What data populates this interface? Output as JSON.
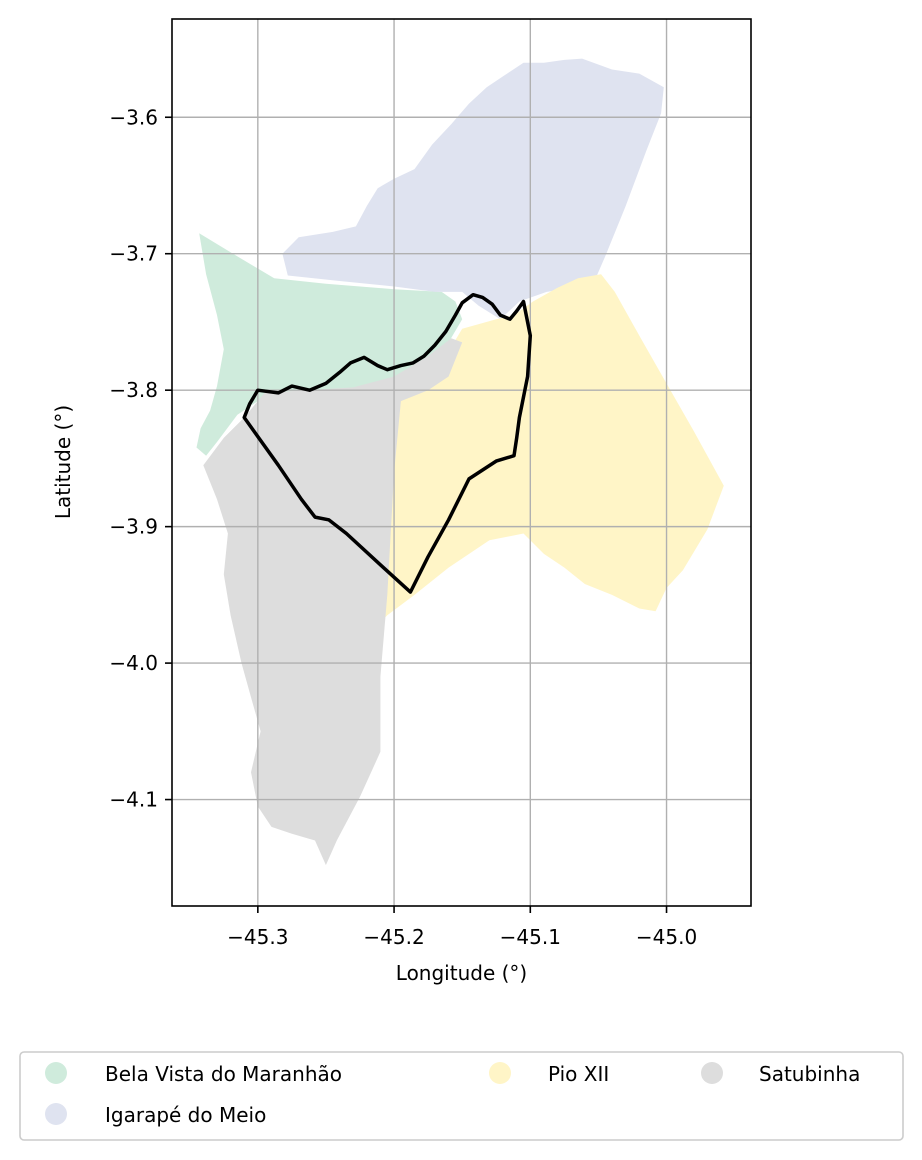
{
  "chart_data": {
    "type": "map",
    "xlabel": "Longitude (°)",
    "ylabel": "Latitude (°)",
    "xlim": [
      -45.363,
      -44.938
    ],
    "ylim": [
      -4.178,
      -3.528
    ],
    "grid": true,
    "x_ticks": [
      -45.3,
      -45.2,
      -45.1,
      -45.0
    ],
    "y_ticks": [
      -3.6,
      -3.7,
      -3.8,
      -3.9,
      -4.0,
      -4.1
    ],
    "x_tick_labels": [
      "−45.3",
      "−45.2",
      "−45.1",
      "−45.0"
    ],
    "y_tick_labels": [
      "−3.6",
      "−3.7",
      "−3.8",
      "−3.9",
      "−4.0",
      "−4.1"
    ],
    "legend_placement": "bottom-center",
    "legend_columns": 3,
    "regions": [
      {
        "name": "Bela Vista do Maranhão",
        "color": "#cfebdc",
        "coords": [
          [
            -45.343,
            -3.685
          ],
          [
            -45.315,
            -3.702
          ],
          [
            -45.288,
            -3.718
          ],
          [
            -45.25,
            -3.722
          ],
          [
            -45.2,
            -3.726
          ],
          [
            -45.165,
            -3.728
          ],
          [
            -45.155,
            -3.735
          ],
          [
            -45.15,
            -3.748
          ],
          [
            -45.16,
            -3.765
          ],
          [
            -45.172,
            -3.778
          ],
          [
            -45.178,
            -3.792
          ],
          [
            -45.195,
            -3.805
          ],
          [
            -45.22,
            -3.81
          ],
          [
            -45.25,
            -3.808
          ],
          [
            -45.275,
            -3.806
          ],
          [
            -45.3,
            -3.808
          ],
          [
            -45.315,
            -3.818
          ],
          [
            -45.33,
            -3.838
          ],
          [
            -45.338,
            -3.848
          ],
          [
            -45.345,
            -3.842
          ],
          [
            -45.342,
            -3.828
          ],
          [
            -45.335,
            -3.815
          ],
          [
            -45.33,
            -3.797
          ],
          [
            -45.325,
            -3.77
          ],
          [
            -45.33,
            -3.745
          ],
          [
            -45.338,
            -3.715
          ],
          [
            -45.343,
            -3.685
          ]
        ]
      },
      {
        "name": "Igarapé do Meio",
        "color": "#dfe3f0",
        "coords": [
          [
            -45.062,
            -3.557
          ],
          [
            -45.04,
            -3.565
          ],
          [
            -45.02,
            -3.568
          ],
          [
            -45.002,
            -3.578
          ],
          [
            -45.004,
            -3.597
          ],
          [
            -45.015,
            -3.625
          ],
          [
            -45.03,
            -3.665
          ],
          [
            -45.045,
            -3.702
          ],
          [
            -45.052,
            -3.718
          ],
          [
            -45.068,
            -3.725
          ],
          [
            -45.088,
            -3.728
          ],
          [
            -45.108,
            -3.735
          ],
          [
            -45.122,
            -3.748
          ],
          [
            -45.138,
            -3.738
          ],
          [
            -45.15,
            -3.728
          ],
          [
            -45.17,
            -3.728
          ],
          [
            -45.2,
            -3.724
          ],
          [
            -45.24,
            -3.72
          ],
          [
            -45.278,
            -3.716
          ],
          [
            -45.282,
            -3.7
          ],
          [
            -45.27,
            -3.688
          ],
          [
            -45.245,
            -3.684
          ],
          [
            -45.228,
            -3.68
          ],
          [
            -45.22,
            -3.665
          ],
          [
            -45.212,
            -3.652
          ],
          [
            -45.2,
            -3.645
          ],
          [
            -45.185,
            -3.638
          ],
          [
            -45.172,
            -3.62
          ],
          [
            -45.158,
            -3.605
          ],
          [
            -45.145,
            -3.59
          ],
          [
            -45.132,
            -3.578
          ],
          [
            -45.12,
            -3.57
          ],
          [
            -45.105,
            -3.56
          ],
          [
            -45.09,
            -3.56
          ],
          [
            -45.075,
            -3.558
          ],
          [
            -45.062,
            -3.557
          ]
        ]
      },
      {
        "name": "Pio XII",
        "color": "#fff5c7",
        "coords": [
          [
            -45.065,
            -3.718
          ],
          [
            -45.048,
            -3.715
          ],
          [
            -45.038,
            -3.728
          ],
          [
            -45.02,
            -3.76
          ],
          [
            -45.0,
            -3.795
          ],
          [
            -44.98,
            -3.83
          ],
          [
            -44.958,
            -3.87
          ],
          [
            -44.97,
            -3.902
          ],
          [
            -44.988,
            -3.932
          ],
          [
            -45.0,
            -3.945
          ],
          [
            -45.008,
            -3.962
          ],
          [
            -45.02,
            -3.96
          ],
          [
            -45.04,
            -3.95
          ],
          [
            -45.06,
            -3.942
          ],
          [
            -45.075,
            -3.93
          ],
          [
            -45.09,
            -3.92
          ],
          [
            -45.105,
            -3.905
          ],
          [
            -45.13,
            -3.91
          ],
          [
            -45.16,
            -3.93
          ],
          [
            -45.185,
            -3.95
          ],
          [
            -45.205,
            -3.965
          ],
          [
            -45.21,
            -3.97
          ],
          [
            -45.215,
            -4.0
          ],
          [
            -45.218,
            -4.02
          ],
          [
            -45.212,
            -4.032
          ],
          [
            -45.225,
            -4.03
          ],
          [
            -45.22,
            -4.0
          ],
          [
            -45.21,
            -3.93
          ],
          [
            -45.205,
            -3.86
          ],
          [
            -45.2,
            -3.81
          ],
          [
            -45.185,
            -3.795
          ],
          [
            -45.165,
            -3.78
          ],
          [
            -45.15,
            -3.755
          ],
          [
            -45.125,
            -3.748
          ],
          [
            -45.112,
            -3.745
          ],
          [
            -45.098,
            -3.735
          ],
          [
            -45.08,
            -3.725
          ],
          [
            -45.065,
            -3.718
          ]
        ]
      },
      {
        "name": "Satubinha",
        "color": "#dddddd",
        "coords": [
          [
            -45.31,
            -3.82
          ],
          [
            -45.325,
            -3.835
          ],
          [
            -45.34,
            -3.855
          ],
          [
            -45.33,
            -3.88
          ],
          [
            -45.322,
            -3.905
          ],
          [
            -45.325,
            -3.935
          ],
          [
            -45.32,
            -3.965
          ],
          [
            -45.312,
            -4.0
          ],
          [
            -45.305,
            -4.025
          ],
          [
            -45.298,
            -4.05
          ],
          [
            -45.305,
            -4.08
          ],
          [
            -45.3,
            -4.105
          ],
          [
            -45.29,
            -4.12
          ],
          [
            -45.275,
            -4.125
          ],
          [
            -45.258,
            -4.13
          ],
          [
            -45.25,
            -4.148
          ],
          [
            -45.242,
            -4.13
          ],
          [
            -45.225,
            -4.098
          ],
          [
            -45.21,
            -4.065
          ],
          [
            -45.21,
            -4.01
          ],
          [
            -45.205,
            -3.95
          ],
          [
            -45.2,
            -3.86
          ],
          [
            -45.195,
            -3.808
          ],
          [
            -45.175,
            -3.8
          ],
          [
            -45.16,
            -3.79
          ],
          [
            -45.15,
            -3.765
          ],
          [
            -45.158,
            -3.762
          ],
          [
            -45.175,
            -3.775
          ],
          [
            -45.2,
            -3.79
          ],
          [
            -45.23,
            -3.798
          ],
          [
            -45.265,
            -3.8
          ],
          [
            -45.295,
            -3.802
          ],
          [
            -45.31,
            -3.82
          ]
        ]
      }
    ],
    "outline": {
      "color": "#000000",
      "coords": [
        [
          -45.31,
          -3.82
        ],
        [
          -45.306,
          -3.81
        ],
        [
          -45.3,
          -3.8
        ],
        [
          -45.285,
          -3.802
        ],
        [
          -45.275,
          -3.797
        ],
        [
          -45.262,
          -3.8
        ],
        [
          -45.25,
          -3.795
        ],
        [
          -45.24,
          -3.787
        ],
        [
          -45.232,
          -3.78
        ],
        [
          -45.222,
          -3.776
        ],
        [
          -45.212,
          -3.782
        ],
        [
          -45.205,
          -3.785
        ],
        [
          -45.195,
          -3.782
        ],
        [
          -45.186,
          -3.78
        ],
        [
          -45.178,
          -3.775
        ],
        [
          -45.17,
          -3.767
        ],
        [
          -45.162,
          -3.757
        ],
        [
          -45.155,
          -3.745
        ],
        [
          -45.15,
          -3.736
        ],
        [
          -45.142,
          -3.73
        ],
        [
          -45.135,
          -3.732
        ],
        [
          -45.128,
          -3.737
        ],
        [
          -45.122,
          -3.745
        ],
        [
          -45.115,
          -3.748
        ],
        [
          -45.11,
          -3.742
        ],
        [
          -45.105,
          -3.735
        ],
        [
          -45.1,
          -3.76
        ],
        [
          -45.102,
          -3.79
        ],
        [
          -45.105,
          -3.805
        ],
        [
          -45.108,
          -3.82
        ],
        [
          -45.11,
          -3.835
        ],
        [
          -45.112,
          -3.848
        ],
        [
          -45.125,
          -3.852
        ],
        [
          -45.145,
          -3.865
        ],
        [
          -45.16,
          -3.895
        ],
        [
          -45.175,
          -3.922
        ],
        [
          -45.188,
          -3.948
        ],
        [
          -45.21,
          -3.928
        ],
        [
          -45.235,
          -3.905
        ],
        [
          -45.248,
          -3.895
        ],
        [
          -45.258,
          -3.893
        ],
        [
          -45.268,
          -3.88
        ],
        [
          -45.285,
          -3.855
        ],
        [
          -45.31,
          -3.82
        ]
      ]
    }
  },
  "legend": {
    "items": [
      {
        "label": "Bela Vista do Maranhão",
        "color": "#cfebdc"
      },
      {
        "label": "Pio XII",
        "color": "#fff5c7"
      },
      {
        "label": "Satubinha",
        "color": "#dddddd"
      },
      {
        "label": "Igarapé do Meio",
        "color": "#dfe3f0"
      }
    ]
  },
  "style": {
    "axis_color": "#000000",
    "grid_color": "#b0b0b0",
    "legend_border_color": "#cccccc"
  }
}
